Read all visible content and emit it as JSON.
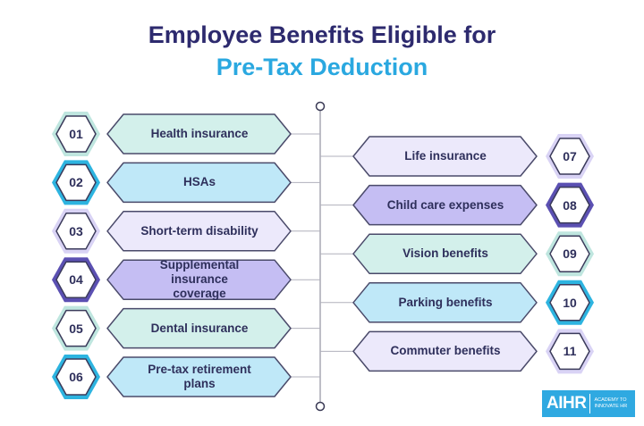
{
  "title": "Employee Benefits Eligible for",
  "subtitle": "Pre-Tax Deduction",
  "themes": {
    "mint": {
      "fill": "#d3f0eb",
      "ring": "#bfe6df"
    },
    "blue": {
      "fill": "#bfe8f8",
      "ring": "#2db4e0"
    },
    "lavender": {
      "fill": "#ece9fb",
      "ring": "#d9d3f5"
    },
    "purple": {
      "fill": "#c5bef3",
      "ring": "#5b50b2"
    }
  },
  "items": [
    {
      "num": "01",
      "label": "Health insurance",
      "theme": "mint",
      "side": "left"
    },
    {
      "num": "02",
      "label": "HSAs",
      "theme": "blue",
      "side": "left"
    },
    {
      "num": "03",
      "label": "Short-term disability",
      "theme": "lavender",
      "side": "left"
    },
    {
      "num": "04",
      "label": "Supplemental insurance coverage",
      "theme": "purple",
      "side": "left"
    },
    {
      "num": "05",
      "label": "Dental insurance",
      "theme": "mint",
      "side": "left"
    },
    {
      "num": "06",
      "label": "Pre-tax retirement plans",
      "theme": "blue",
      "side": "left"
    },
    {
      "num": "07",
      "label": "Life insurance",
      "theme": "lavender",
      "side": "right"
    },
    {
      "num": "08",
      "label": "Child care expenses",
      "theme": "purple",
      "side": "right"
    },
    {
      "num": "09",
      "label": "Vision benefits",
      "theme": "mint",
      "side": "right"
    },
    {
      "num": "10",
      "label": "Parking benefits",
      "theme": "blue",
      "side": "right"
    },
    {
      "num": "11",
      "label": "Commuter benefits",
      "theme": "lavender",
      "side": "right"
    }
  ],
  "logo": {
    "brand": "AIHR",
    "tagline": "ACADEMY TO INNOVATE HR"
  }
}
